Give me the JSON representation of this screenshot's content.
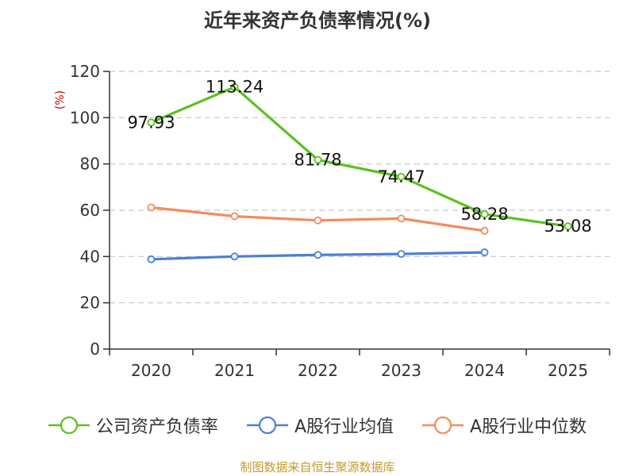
{
  "chart_data": {
    "type": "line",
    "title": "近年来资产负债率情况(%)",
    "ylabel": "(%)",
    "xlabel": "",
    "ylim": [
      0,
      120
    ],
    "yticks": [
      0,
      20,
      40,
      60,
      80,
      100,
      120
    ],
    "categories": [
      "2020",
      "2021",
      "2022",
      "2023",
      "2024",
      "2025"
    ],
    "series": [
      {
        "name": "公司资产负债率",
        "color": "#5ac21e",
        "values": [
          97.93,
          113.24,
          81.78,
          74.47,
          58.28,
          53.08
        ],
        "labels": [
          "97.93",
          "113.24",
          "81.78",
          "74.47",
          "58.28",
          "53.08"
        ]
      },
      {
        "name": "A股行业均值",
        "color": "#4a7fd8",
        "values": [
          38.8,
          40.0,
          40.7,
          41.1,
          41.8,
          null
        ]
      },
      {
        "name": "A股行业中位数",
        "color": "#f48b5c",
        "values": [
          61.2,
          57.4,
          55.6,
          56.4,
          51.1,
          null
        ]
      }
    ],
    "legend_position": "bottom",
    "grid": true
  },
  "source": "制图数据来自恒生聚源数据库"
}
